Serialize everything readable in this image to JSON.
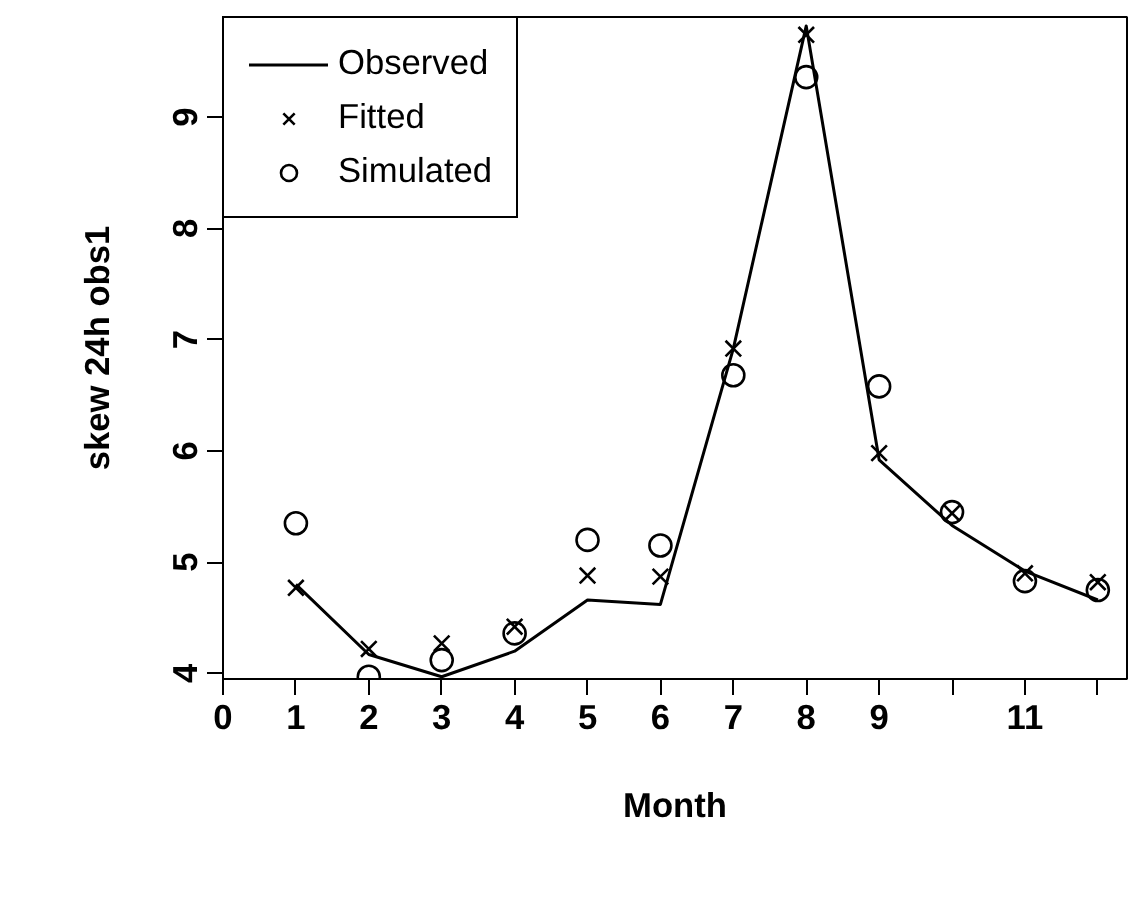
{
  "chart_data": {
    "type": "line",
    "xlabel": "Month",
    "ylabel": "skew 24h obs1",
    "x": [
      1,
      2,
      3,
      4,
      5,
      6,
      7,
      8,
      9,
      10,
      11,
      12
    ],
    "series": [
      {
        "name": "Observed",
        "marker": "none",
        "line_style": "solid",
        "color": "#000000",
        "values": [
          4.8,
          4.17,
          3.97,
          4.2,
          4.66,
          4.62,
          6.92,
          9.82,
          5.92,
          5.33,
          4.92,
          4.66
        ]
      },
      {
        "name": "Fitted",
        "type": "scatter",
        "marker": "cross",
        "color": "#000000",
        "values": [
          4.77,
          4.22,
          4.27,
          4.42,
          4.88,
          4.87,
          6.92,
          9.74,
          5.98,
          5.44,
          4.9,
          4.82
        ]
      },
      {
        "name": "Simulated",
        "type": "scatter",
        "marker": "circle",
        "color": "#000000",
        "values": [
          5.35,
          3.97,
          4.12,
          4.36,
          5.2,
          5.15,
          6.68,
          9.36,
          6.58,
          5.45,
          4.83,
          4.75
        ]
      }
    ],
    "xlim": [
      0,
      12.4
    ],
    "ylim": [
      3.95,
      9.9
    ],
    "xticks": [
      0,
      1,
      2,
      3,
      4,
      5,
      6,
      7,
      8,
      9,
      {
        "value": 10,
        "label": null
      },
      11,
      {
        "value": 12,
        "label": null
      }
    ],
    "yticks": [
      4,
      5,
      6,
      7,
      8,
      9
    ],
    "grid": false,
    "legend": "top left"
  }
}
